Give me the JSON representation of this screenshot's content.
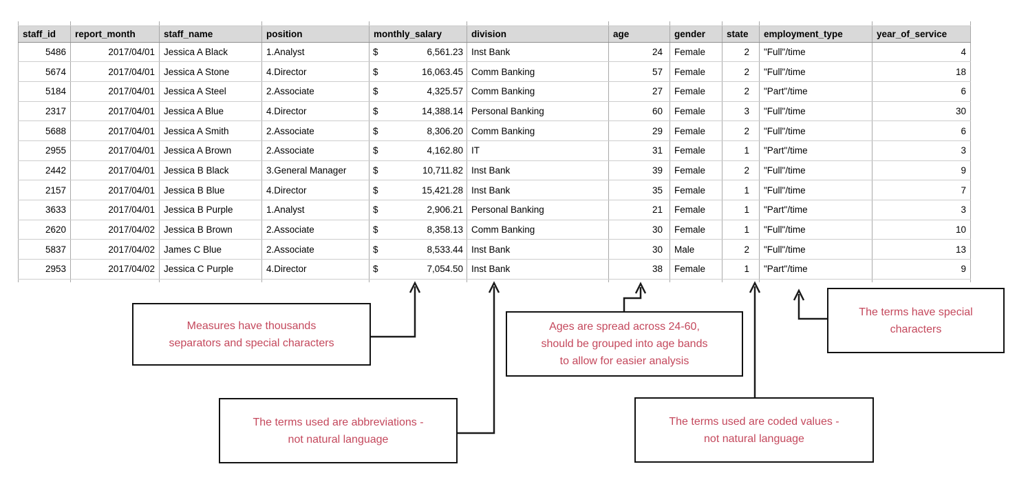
{
  "table": {
    "columns": [
      {
        "key": "staff_id",
        "label": "staff_id",
        "align": "right"
      },
      {
        "key": "report_month",
        "label": "report_month",
        "align": "right"
      },
      {
        "key": "staff_name",
        "label": "staff_name",
        "align": "left"
      },
      {
        "key": "position",
        "label": "position",
        "align": "left"
      },
      {
        "key": "monthly_salary",
        "label": "monthly_salary",
        "align": "accounting",
        "currency_symbol": "$"
      },
      {
        "key": "division",
        "label": "division",
        "align": "left"
      },
      {
        "key": "age",
        "label": "age",
        "align": "right"
      },
      {
        "key": "gender",
        "label": "gender",
        "align": "left"
      },
      {
        "key": "state",
        "label": "state",
        "align": "right"
      },
      {
        "key": "employment_type",
        "label": "employment_type",
        "align": "left"
      },
      {
        "key": "year_of_service",
        "label": "year_of_service",
        "align": "right"
      }
    ],
    "rows": [
      [
        "5486",
        "2017/04/01",
        "Jessica A Black",
        "1.Analyst",
        "6,561.23",
        "Inst Bank",
        "24",
        "Female",
        "2",
        "\"Full\"/time",
        "4"
      ],
      [
        "5674",
        "2017/04/01",
        "Jessica A Stone",
        "4.Director",
        "16,063.45",
        "Comm Banking",
        "57",
        "Female",
        "2",
        "\"Full\"/time",
        "18"
      ],
      [
        "5184",
        "2017/04/01",
        "Jessica A Steel",
        "2.Associate",
        "4,325.57",
        "Comm Banking",
        "27",
        "Female",
        "2",
        "\"Part\"/time",
        "6"
      ],
      [
        "2317",
        "2017/04/01",
        "Jessica A Blue",
        "4.Director",
        "14,388.14",
        "Personal Banking",
        "60",
        "Female",
        "3",
        "\"Full\"/time",
        "30"
      ],
      [
        "5688",
        "2017/04/01",
        "Jessica A Smith",
        "2.Associate",
        "8,306.20",
        "Comm Banking",
        "29",
        "Female",
        "2",
        "\"Full\"/time",
        "6"
      ],
      [
        "2955",
        "2017/04/01",
        "Jessica A Brown",
        "2.Associate",
        "4,162.80",
        "IT",
        "31",
        "Female",
        "1",
        "\"Part\"/time",
        "3"
      ],
      [
        "2442",
        "2017/04/01",
        "Jessica B Black",
        "3.General Manager",
        "10,711.82",
        "Inst Bank",
        "39",
        "Female",
        "2",
        "\"Full\"/time",
        "9"
      ],
      [
        "2157",
        "2017/04/01",
        "Jessica B Blue",
        "4.Director",
        "15,421.28",
        "Inst Bank",
        "35",
        "Female",
        "1",
        "\"Full\"/time",
        "7"
      ],
      [
        "3633",
        "2017/04/01",
        "Jessica B Purple",
        "1.Analyst",
        "2,906.21",
        "Personal Banking",
        "21",
        "Female",
        "1",
        "\"Part\"/time",
        "3"
      ],
      [
        "2620",
        "2017/04/02",
        "Jessica B Brown",
        "2.Associate",
        "8,358.13",
        "Comm Banking",
        "30",
        "Female",
        "1",
        "\"Full\"/time",
        "10"
      ],
      [
        "5837",
        "2017/04/02",
        "James C Blue",
        "2.Associate",
        "8,533.44",
        "Inst Bank",
        "30",
        "Male",
        "2",
        "\"Full\"/time",
        "13"
      ],
      [
        "2953",
        "2017/04/02",
        "Jessica C Purple",
        "4.Director",
        "7,054.50",
        "Inst Bank",
        "38",
        "Female",
        "1",
        "\"Part\"/time",
        "9"
      ]
    ]
  },
  "annotations": [
    {
      "id": "salary",
      "text": "Measures have thousands\nseparators and special characters",
      "points_to": "monthly_salary"
    },
    {
      "id": "age",
      "text": "Ages are spread across 24-60,\nshould be grouped into age bands\nto allow for easier analysis",
      "points_to": "age"
    },
    {
      "id": "special",
      "text": "The terms have special\ncharacters",
      "points_to": "employment_type"
    },
    {
      "id": "abbrev",
      "text": "The terms used are abbreviations -\nnot natural language",
      "points_to": "division"
    },
    {
      "id": "coded",
      "text": "The terms used are coded values -\nnot natural language",
      "points_to": "state"
    }
  ],
  "colors": {
    "annotation_text": "#c4485c",
    "annotation_border": "#111111",
    "header_bg": "#d9d9d9",
    "arrow": "#1a1a1a"
  }
}
